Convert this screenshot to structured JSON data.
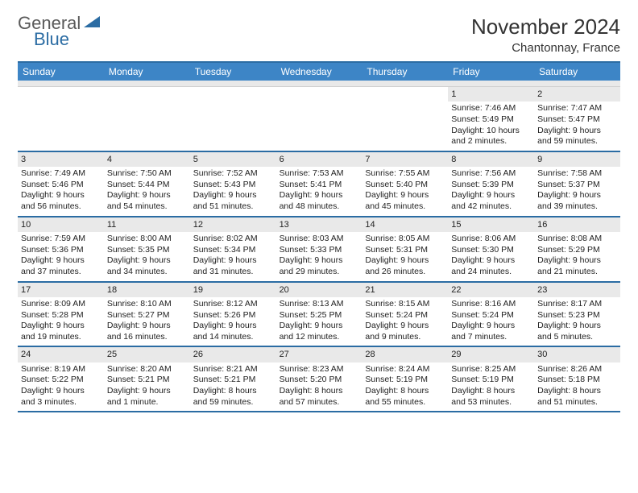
{
  "logo": {
    "text1": "General",
    "text2": "Blue",
    "accent_color": "#2b6ca3"
  },
  "title": "November 2024",
  "location": "Chantonnay, France",
  "colors": {
    "header_bg": "#3d85c6",
    "border": "#2b6ca3",
    "daynum_bg": "#e9e9e9",
    "text": "#222222"
  },
  "day_names": [
    "Sunday",
    "Monday",
    "Tuesday",
    "Wednesday",
    "Thursday",
    "Friday",
    "Saturday"
  ],
  "weeks": [
    [
      {
        "day": "",
        "sunrise": "",
        "sunset": "",
        "daylight": ""
      },
      {
        "day": "",
        "sunrise": "",
        "sunset": "",
        "daylight": ""
      },
      {
        "day": "",
        "sunrise": "",
        "sunset": "",
        "daylight": ""
      },
      {
        "day": "",
        "sunrise": "",
        "sunset": "",
        "daylight": ""
      },
      {
        "day": "",
        "sunrise": "",
        "sunset": "",
        "daylight": ""
      },
      {
        "day": "1",
        "sunrise": "Sunrise: 7:46 AM",
        "sunset": "Sunset: 5:49 PM",
        "daylight": "Daylight: 10 hours and 2 minutes."
      },
      {
        "day": "2",
        "sunrise": "Sunrise: 7:47 AM",
        "sunset": "Sunset: 5:47 PM",
        "daylight": "Daylight: 9 hours and 59 minutes."
      }
    ],
    [
      {
        "day": "3",
        "sunrise": "Sunrise: 7:49 AM",
        "sunset": "Sunset: 5:46 PM",
        "daylight": "Daylight: 9 hours and 56 minutes."
      },
      {
        "day": "4",
        "sunrise": "Sunrise: 7:50 AM",
        "sunset": "Sunset: 5:44 PM",
        "daylight": "Daylight: 9 hours and 54 minutes."
      },
      {
        "day": "5",
        "sunrise": "Sunrise: 7:52 AM",
        "sunset": "Sunset: 5:43 PM",
        "daylight": "Daylight: 9 hours and 51 minutes."
      },
      {
        "day": "6",
        "sunrise": "Sunrise: 7:53 AM",
        "sunset": "Sunset: 5:41 PM",
        "daylight": "Daylight: 9 hours and 48 minutes."
      },
      {
        "day": "7",
        "sunrise": "Sunrise: 7:55 AM",
        "sunset": "Sunset: 5:40 PM",
        "daylight": "Daylight: 9 hours and 45 minutes."
      },
      {
        "day": "8",
        "sunrise": "Sunrise: 7:56 AM",
        "sunset": "Sunset: 5:39 PM",
        "daylight": "Daylight: 9 hours and 42 minutes."
      },
      {
        "day": "9",
        "sunrise": "Sunrise: 7:58 AM",
        "sunset": "Sunset: 5:37 PM",
        "daylight": "Daylight: 9 hours and 39 minutes."
      }
    ],
    [
      {
        "day": "10",
        "sunrise": "Sunrise: 7:59 AM",
        "sunset": "Sunset: 5:36 PM",
        "daylight": "Daylight: 9 hours and 37 minutes."
      },
      {
        "day": "11",
        "sunrise": "Sunrise: 8:00 AM",
        "sunset": "Sunset: 5:35 PM",
        "daylight": "Daylight: 9 hours and 34 minutes."
      },
      {
        "day": "12",
        "sunrise": "Sunrise: 8:02 AM",
        "sunset": "Sunset: 5:34 PM",
        "daylight": "Daylight: 9 hours and 31 minutes."
      },
      {
        "day": "13",
        "sunrise": "Sunrise: 8:03 AM",
        "sunset": "Sunset: 5:33 PM",
        "daylight": "Daylight: 9 hours and 29 minutes."
      },
      {
        "day": "14",
        "sunrise": "Sunrise: 8:05 AM",
        "sunset": "Sunset: 5:31 PM",
        "daylight": "Daylight: 9 hours and 26 minutes."
      },
      {
        "day": "15",
        "sunrise": "Sunrise: 8:06 AM",
        "sunset": "Sunset: 5:30 PM",
        "daylight": "Daylight: 9 hours and 24 minutes."
      },
      {
        "day": "16",
        "sunrise": "Sunrise: 8:08 AM",
        "sunset": "Sunset: 5:29 PM",
        "daylight": "Daylight: 9 hours and 21 minutes."
      }
    ],
    [
      {
        "day": "17",
        "sunrise": "Sunrise: 8:09 AM",
        "sunset": "Sunset: 5:28 PM",
        "daylight": "Daylight: 9 hours and 19 minutes."
      },
      {
        "day": "18",
        "sunrise": "Sunrise: 8:10 AM",
        "sunset": "Sunset: 5:27 PM",
        "daylight": "Daylight: 9 hours and 16 minutes."
      },
      {
        "day": "19",
        "sunrise": "Sunrise: 8:12 AM",
        "sunset": "Sunset: 5:26 PM",
        "daylight": "Daylight: 9 hours and 14 minutes."
      },
      {
        "day": "20",
        "sunrise": "Sunrise: 8:13 AM",
        "sunset": "Sunset: 5:25 PM",
        "daylight": "Daylight: 9 hours and 12 minutes."
      },
      {
        "day": "21",
        "sunrise": "Sunrise: 8:15 AM",
        "sunset": "Sunset: 5:24 PM",
        "daylight": "Daylight: 9 hours and 9 minutes."
      },
      {
        "day": "22",
        "sunrise": "Sunrise: 8:16 AM",
        "sunset": "Sunset: 5:24 PM",
        "daylight": "Daylight: 9 hours and 7 minutes."
      },
      {
        "day": "23",
        "sunrise": "Sunrise: 8:17 AM",
        "sunset": "Sunset: 5:23 PM",
        "daylight": "Daylight: 9 hours and 5 minutes."
      }
    ],
    [
      {
        "day": "24",
        "sunrise": "Sunrise: 8:19 AM",
        "sunset": "Sunset: 5:22 PM",
        "daylight": "Daylight: 9 hours and 3 minutes."
      },
      {
        "day": "25",
        "sunrise": "Sunrise: 8:20 AM",
        "sunset": "Sunset: 5:21 PM",
        "daylight": "Daylight: 9 hours and 1 minute."
      },
      {
        "day": "26",
        "sunrise": "Sunrise: 8:21 AM",
        "sunset": "Sunset: 5:21 PM",
        "daylight": "Daylight: 8 hours and 59 minutes."
      },
      {
        "day": "27",
        "sunrise": "Sunrise: 8:23 AM",
        "sunset": "Sunset: 5:20 PM",
        "daylight": "Daylight: 8 hours and 57 minutes."
      },
      {
        "day": "28",
        "sunrise": "Sunrise: 8:24 AM",
        "sunset": "Sunset: 5:19 PM",
        "daylight": "Daylight: 8 hours and 55 minutes."
      },
      {
        "day": "29",
        "sunrise": "Sunrise: 8:25 AM",
        "sunset": "Sunset: 5:19 PM",
        "daylight": "Daylight: 8 hours and 53 minutes."
      },
      {
        "day": "30",
        "sunrise": "Sunrise: 8:26 AM",
        "sunset": "Sunset: 5:18 PM",
        "daylight": "Daylight: 8 hours and 51 minutes."
      }
    ]
  ]
}
